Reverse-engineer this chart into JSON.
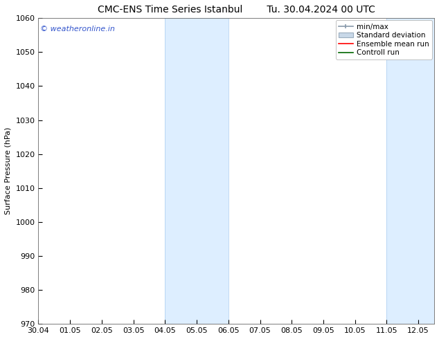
{
  "title": "CMC-ENS Time Series Istanbul",
  "title2": "Tu. 30.04.2024 00 UTC",
  "ylabel": "Surface Pressure (hPa)",
  "ylim": [
    970,
    1060
  ],
  "yticks": [
    970,
    980,
    990,
    1000,
    1010,
    1020,
    1030,
    1040,
    1050,
    1060
  ],
  "xlim_start": 0,
  "xlim_end": 12.5,
  "xtick_positions": [
    0,
    1,
    2,
    3,
    4,
    5,
    6,
    7,
    8,
    9,
    10,
    11,
    12
  ],
  "xtick_labels": [
    "30.04",
    "01.05",
    "02.05",
    "03.05",
    "04.05",
    "05.05",
    "06.05",
    "07.05",
    "08.05",
    "09.05",
    "10.05",
    "11.05",
    "12.05"
  ],
  "shaded_bands": [
    {
      "x_start": 4.0,
      "x_end": 6.0
    },
    {
      "x_start": 11.0,
      "x_end": 12.5
    }
  ],
  "band_color": "#ddeeff",
  "band_edge_color": "#aaccee",
  "background_color": "#ffffff",
  "watermark": "© weatheronline.in",
  "watermark_color": "#3355cc",
  "legend_labels": [
    "min/max",
    "Standard deviation",
    "Ensemble mean run",
    "Controll run"
  ],
  "legend_colors_line": [
    "#8899aa",
    "#aabbcc",
    "#ff0000",
    "#008000"
  ],
  "title_fontsize": 10,
  "axis_label_fontsize": 8,
  "tick_fontsize": 8,
  "watermark_fontsize": 8,
  "legend_fontsize": 7.5
}
